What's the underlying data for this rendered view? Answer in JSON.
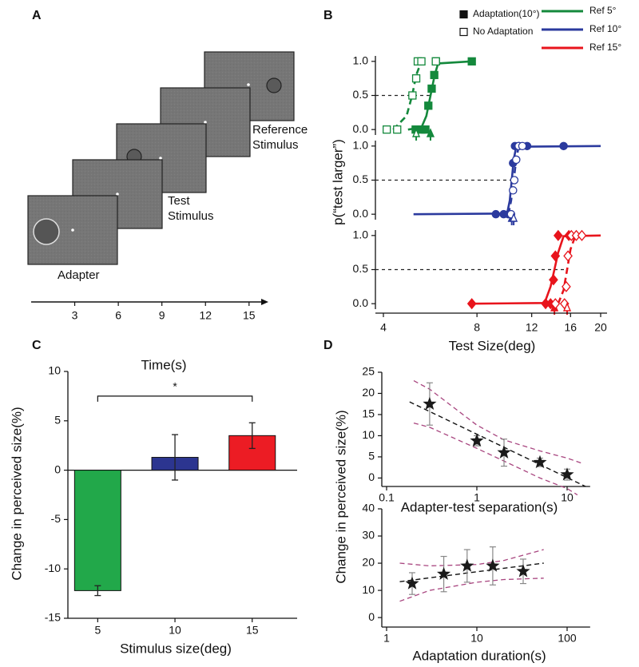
{
  "panel_labels": [
    "A",
    "B",
    "C",
    "D"
  ],
  "diagram": {
    "labels": {
      "adapter": "Adapter",
      "test": [
        "Test",
        "Stimulus"
      ],
      "reference": [
        "Reference",
        "Stimulus"
      ]
    },
    "timeline": {
      "xlim": [
        0,
        16
      ],
      "xticks": [
        3,
        6,
        9,
        12,
        15
      ],
      "xlabel": "Time(s)"
    }
  },
  "chart_data": [
    {
      "type": "psychometric",
      "xlabel": "Test Size(deg)",
      "ylabel": "p(“test larger”)",
      "log_x": true,
      "xlim": [
        4,
        20
      ],
      "xticks": [
        4,
        8,
        12,
        16,
        20
      ],
      "marker_legend": [
        {
          "name": "Adaptation(10°)",
          "filled": true
        },
        {
          "name": "No Adaptation",
          "filled": false
        }
      ],
      "subplots": [
        {
          "name": "Ref 5°",
          "color": "#14893c",
          "marker": "square",
          "ylim": [
            -0.08,
            1.08
          ],
          "yticks": [
            {
              "value": 0,
              "label": "0.0"
            },
            {
              "value": 0.5,
              "label": "0.5"
            },
            {
              "value": 1,
              "label": "1.0"
            }
          ],
          "reference_line": 0.5,
          "adaptation": {
            "line_style": "solid",
            "x": [
              5.08,
              5.3,
              5.46,
              5.58,
              5.72,
              5.83,
              5.9,
              7.7
            ],
            "y": [
              0,
              0,
              0,
              0.35,
              0.6,
              0.8,
              1,
              1
            ],
            "fit_x": [
              4.8,
              5.3,
              5.5,
              5.67,
              5.85,
              6.0,
              7.7
            ],
            "fit_y": [
              0,
              0.03,
              0.2,
              0.5,
              0.8,
              0.97,
              1
            ],
            "pse": 5.67
          },
          "no_adaptation": {
            "line_style": "dashed",
            "x": [
              4.1,
              4.43,
              4.96,
              5.1,
              5.16,
              5.3,
              5.9
            ],
            "y": [
              0,
              0,
              0.5,
              0.75,
              1,
              1,
              1
            ],
            "fit_x": [
              4.3,
              4.75,
              4.95,
              5.1,
              5.3
            ],
            "fit_y": [
              0,
              0.2,
              0.5,
              0.8,
              1
            ],
            "pse": 5.1
          }
        },
        {
          "name": "Ref 10°",
          "color": "#2b3a9e",
          "marker": "circle",
          "ylim": [
            -0.08,
            1.08
          ],
          "yticks": [
            {
              "value": 0,
              "label": "0.0"
            },
            {
              "value": 0.5,
              "label": "0.5"
            },
            {
              "value": 1,
              "label": "1.0"
            }
          ],
          "reference_line": 0.5,
          "adaptation": {
            "line_style": "solid",
            "x": [
              9.2,
              9.75,
              10.1,
              10.45,
              10.6,
              10.9,
              11.6,
              15.2
            ],
            "y": [
              0,
              0,
              0,
              0.75,
              1,
              1,
              1,
              1
            ],
            "fit_x": [
              5.0,
              10.0,
              10.2,
              10.35,
              10.5,
              10.7,
              20
            ],
            "fit_y": [
              0,
              0.01,
              0.2,
              0.5,
              0.8,
              0.99,
              1
            ],
            "pse": 10.35
          },
          "no_adaptation": {
            "line_style": "dashed",
            "x": [
              10.3,
              10.45,
              10.55,
              10.7,
              10.9,
              11.2
            ],
            "y": [
              0,
              0.35,
              0.5,
              0.8,
              1,
              1
            ],
            "fit_x": [
              10.1,
              10.3,
              10.5,
              10.7,
              10.9
            ],
            "fit_y": [
              0,
              0.2,
              0.5,
              0.8,
              1
            ],
            "pse": 10.5
          }
        },
        {
          "name": "Ref 15°",
          "color": "#e8141c",
          "marker": "diamond",
          "ylim": [
            -0.08,
            1.08
          ],
          "yticks": [
            {
              "value": 0,
              "label": "0.0"
            },
            {
              "value": 0.5,
              "label": "0.5"
            },
            {
              "value": 1,
              "label": "1.0"
            }
          ],
          "reference_line": 0.5,
          "adaptation": {
            "line_style": "solid",
            "x": [
              7.7,
              13.3,
              13.8,
              14.1,
              14.3,
              14.6,
              15.8
            ],
            "y": [
              0,
              0,
              0,
              0.35,
              0.7,
              1,
              1
            ],
            "fit_x": [
              7.6,
              13.2,
              13.8,
              14.2,
              14.6,
              15.2,
              20
            ],
            "fit_y": [
              0,
              0.01,
              0.25,
              0.5,
              0.75,
              0.99,
              1
            ],
            "pse": 14.2
          },
          "no_adaptation": {
            "line_style": "dashed",
            "x": [
              14.3,
              15.3,
              15.5,
              15.7,
              16.1,
              16.7,
              17.4
            ],
            "y": [
              0,
              0,
              0.25,
              0.7,
              1,
              1,
              1
            ],
            "fit_x": [
              14.6,
              15.2,
              15.6,
              16.0,
              16.6
            ],
            "fit_y": [
              0,
              0.2,
              0.5,
              0.8,
              1
            ],
            "pse": 15.6
          }
        }
      ]
    },
    {
      "type": "bar",
      "xlabel": "Stimulus size(deg)",
      "ylabel": "Change in perceived size(%)",
      "categories": [
        "5",
        "10",
        "15"
      ],
      "values": [
        -12.2,
        1.3,
        3.5
      ],
      "errors": [
        0.5,
        2.3,
        1.3
      ],
      "colors": [
        "#22a84a",
        "#2c3590",
        "#ec1c24"
      ],
      "ylim": [
        -15,
        10
      ],
      "yticks": [
        -15,
        -10,
        -5,
        0,
        5,
        10
      ],
      "annotations": [
        {
          "text": "*",
          "between": [
            "5",
            "15"
          ],
          "y": 7.5
        }
      ]
    },
    {
      "type": "scatter",
      "ylabel": "Change in perceived size(%)",
      "color": "#1a1a1a",
      "band_color": "#a8457f",
      "subplots": [
        {
          "xlabel": "Adapter-test separation(s)",
          "log_x": true,
          "xlim": [
            0.1,
            18
          ],
          "xticks": [
            0.1,
            1,
            10
          ],
          "ylim": [
            -2,
            25
          ],
          "yticks": [
            0,
            5,
            10,
            15,
            20,
            25
          ],
          "x": [
            0.3,
            1,
            2,
            5,
            10
          ],
          "values": [
            17.5,
            8.8,
            6,
            3.7,
            0.8
          ],
          "errors": [
            5,
            1.2,
            3.2,
            1,
            1.3
          ],
          "fit": {
            "x": [
              0.18,
              16
            ],
            "y": [
              18,
              -2
            ]
          },
          "band_upper": {
            "x": [
              0.2,
              0.3,
              1,
              2,
              5,
              10,
              15
            ],
            "y": [
              23,
              21,
              12.5,
              9,
              6.4,
              4.7,
              3.4
            ]
          },
          "band_lower": {
            "x": [
              0.2,
              0.3,
              1,
              2,
              5,
              10,
              13
            ],
            "y": [
              13,
              12,
              7,
              4,
              0,
              -2.5,
              -4
            ]
          }
        },
        {
          "xlabel": "Adaptation duration(s)",
          "log_x": true,
          "xlim": [
            1,
            180
          ],
          "xticks": [
            1,
            10,
            100
          ],
          "ylim": [
            -3.5,
            40
          ],
          "yticks": [
            0,
            10,
            20,
            30,
            40
          ],
          "x": [
            1.92,
            4.3,
            7.8,
            15,
            32.6
          ],
          "values": [
            12.5,
            16,
            19,
            19,
            17
          ],
          "errors": [
            4,
            6.5,
            6,
            7,
            4.5
          ],
          "fit": {
            "x": [
              1.4,
              55
            ],
            "y": [
              13.2,
              20
            ]
          },
          "band_upper": {
            "x": [
              1.4,
              3,
              10,
              20,
              55
            ],
            "y": [
              20,
              19,
              19.5,
              21,
              25
            ]
          },
          "band_lower": {
            "x": [
              1.4,
              3,
              10,
              20,
              55
            ],
            "y": [
              6,
              10,
              13,
              14,
              14.5
            ]
          }
        }
      ]
    }
  ]
}
